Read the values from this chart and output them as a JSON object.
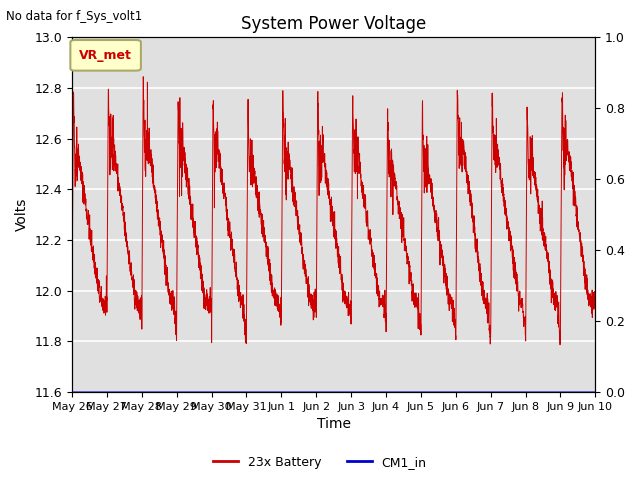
{
  "title": "System Power Voltage",
  "top_left_text": "No data for f_Sys_volt1",
  "xlabel": "Time",
  "ylabel": "Volts",
  "ylim_left": [
    11.6,
    13.0
  ],
  "ylim_right": [
    0.0,
    1.0
  ],
  "background_color": "#ffffff",
  "plot_bg_color": "#e0e0e0",
  "grid_color": "#ffffff",
  "line_color_battery": "#cc0000",
  "line_color_cm1": "#0000cc",
  "legend_labels": [
    "23x Battery",
    "CM1_in"
  ],
  "vr_met_label": "VR_met",
  "vr_met_bg": "#ffffcc",
  "vr_met_border": "#aaaa66",
  "vr_met_text_color": "#cc0000",
  "x_tick_labels": [
    "May 26",
    "May 27",
    "May 28",
    "May 29",
    "May 30",
    "May 31",
    "Jun 1",
    "Jun 2",
    "Jun 3",
    "Jun 4",
    "Jun 5",
    "Jun 6",
    "Jun 7",
    "Jun 8",
    "Jun 9",
    "Jun 10"
  ],
  "y_left_ticks": [
    11.6,
    11.8,
    12.0,
    12.2,
    12.4,
    12.6,
    12.8,
    13.0
  ],
  "y_right_ticks": [
    0.0,
    0.2,
    0.4,
    0.6,
    0.8,
    1.0
  ],
  "seed": 42,
  "num_days": 15,
  "points_per_day": 200
}
